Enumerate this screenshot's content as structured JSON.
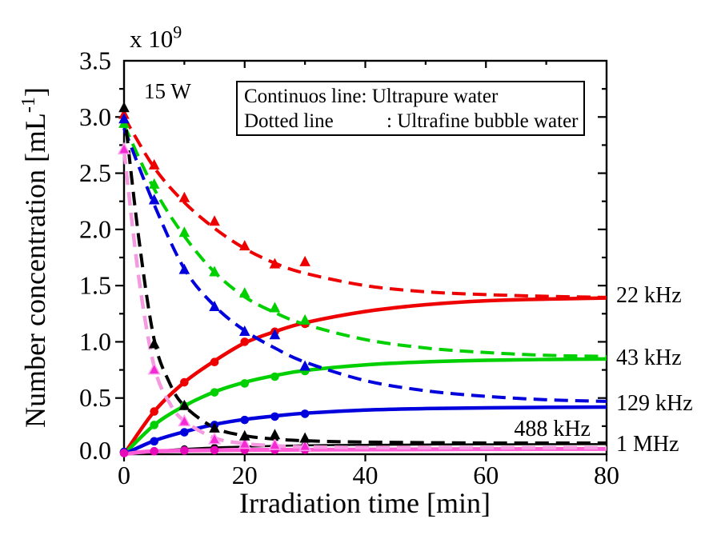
{
  "figure": {
    "power_label": "15 W",
    "legend": {
      "rows": [
        {
          "name": "Continuos line",
          "rest": ": Ultrapure water"
        },
        {
          "name": "Dotted line",
          "rest": ": Ultrafine bubble water"
        }
      ]
    }
  },
  "chart_data": {
    "type": "line",
    "title": "",
    "xlabel": "Irradiation time [min]",
    "ylabel": {
      "pre": "Number concentration [mL",
      "sup": "-1",
      "post": "]"
    },
    "scale_label": {
      "prefix": "x 10",
      "exponent": "9"
    },
    "xlim": [
      0,
      80
    ],
    "ylim": [
      0,
      3.5
    ],
    "x_major_ticks": [
      0,
      20,
      40,
      60,
      80
    ],
    "x_minor_ticks": [
      10,
      30,
      50,
      70
    ],
    "y_major_step": 0.5,
    "y_minor_step": 0.25,
    "grid": false,
    "legend_position": "top-center",
    "annotations": [
      {
        "text": "22 kHz",
        "y": 1.4,
        "placement": "right"
      },
      {
        "text": "43 kHz",
        "y": 0.845,
        "placement": "right"
      },
      {
        "text": "129 kHz",
        "y": 0.44,
        "placement": "right"
      },
      {
        "text": "488 kHz",
        "y": 0.22,
        "t": 71,
        "placement": "inside"
      },
      {
        "text": "1 MHz",
        "y": 0.075,
        "placement": "right"
      }
    ],
    "series": [
      {
        "id": "22khz-ultrapure",
        "label": "22 kHz",
        "water": "Ultrapure water",
        "color": "#ee0000",
        "line": "solid",
        "width": 4.5,
        "marker": "circle",
        "curve": [
          [
            0,
            0
          ],
          [
            5,
            0.38
          ],
          [
            10,
            0.64
          ],
          [
            15,
            0.83
          ],
          [
            20,
            0.99
          ],
          [
            25,
            1.09
          ],
          [
            30,
            1.17
          ],
          [
            40,
            1.27
          ],
          [
            50,
            1.33
          ],
          [
            60,
            1.365
          ],
          [
            70,
            1.38
          ],
          [
            80,
            1.39
          ]
        ],
        "markers": [
          [
            0,
            0.02
          ],
          [
            5,
            0.38
          ],
          [
            10,
            0.64
          ],
          [
            15,
            0.82
          ],
          [
            20,
            1.0
          ],
          [
            25,
            1.09
          ],
          [
            30,
            1.16
          ]
        ]
      },
      {
        "id": "43khz-ultrapure",
        "label": "43 kHz",
        "water": "Ultrapure water",
        "color": "#00d000",
        "line": "solid",
        "width": 4.5,
        "marker": "circle",
        "curve": [
          [
            0,
            0
          ],
          [
            5,
            0.26
          ],
          [
            10,
            0.43
          ],
          [
            15,
            0.555
          ],
          [
            20,
            0.64
          ],
          [
            25,
            0.7
          ],
          [
            30,
            0.745
          ],
          [
            40,
            0.795
          ],
          [
            50,
            0.822
          ],
          [
            60,
            0.836
          ],
          [
            70,
            0.843
          ],
          [
            80,
            0.847
          ]
        ],
        "markers": [
          [
            0,
            0.02
          ],
          [
            5,
            0.26
          ],
          [
            10,
            0.43
          ],
          [
            15,
            0.55
          ],
          [
            20,
            0.63
          ],
          [
            25,
            0.69
          ],
          [
            30,
            0.74
          ]
        ]
      },
      {
        "id": "129khz-ultrapure",
        "label": "129 kHz",
        "water": "Ultrapure water",
        "color": "#0000dd",
        "line": "solid",
        "width": 4.5,
        "marker": "circle",
        "curve": [
          [
            0,
            0
          ],
          [
            5,
            0.12
          ],
          [
            10,
            0.2
          ],
          [
            15,
            0.265
          ],
          [
            20,
            0.31
          ],
          [
            25,
            0.34
          ],
          [
            30,
            0.365
          ],
          [
            40,
            0.393
          ],
          [
            50,
            0.406
          ],
          [
            60,
            0.413
          ],
          [
            70,
            0.417
          ],
          [
            80,
            0.42
          ]
        ],
        "markers": [
          [
            0,
            0.02
          ],
          [
            5,
            0.115
          ],
          [
            10,
            0.195
          ],
          [
            15,
            0.26
          ],
          [
            20,
            0.305
          ],
          [
            25,
            0.335
          ],
          [
            30,
            0.36
          ]
        ]
      },
      {
        "id": "488khz-ultrapure",
        "label": "488 kHz",
        "water": "Ultrapure water",
        "color": "#000000",
        "line": "solid",
        "width": 2.5,
        "marker": "circle",
        "marker_size": 4.6,
        "curve": [
          [
            0,
            0
          ],
          [
            5,
            0.028
          ],
          [
            10,
            0.047
          ],
          [
            15,
            0.06
          ],
          [
            20,
            0.068
          ],
          [
            30,
            0.079
          ],
          [
            40,
            0.084
          ],
          [
            60,
            0.088
          ],
          [
            80,
            0.09
          ]
        ],
        "markers": [
          [
            0,
            0.015
          ],
          [
            5,
            0.028
          ],
          [
            10,
            0.047
          ],
          [
            15,
            0.06
          ],
          [
            20,
            0.068
          ],
          [
            25,
            0.074
          ],
          [
            30,
            0.079
          ]
        ]
      },
      {
        "id": "1mhz-ultrapure",
        "label": "1 MHz",
        "water": "Ultrapure water",
        "color": "#ff5cd6",
        "marker_color": "#e709b9",
        "line": "solid",
        "width": 5,
        "marker": "circle",
        "curve": [
          [
            0,
            0
          ],
          [
            2.5,
            0.018
          ],
          [
            5,
            0.027
          ],
          [
            10,
            0.033
          ],
          [
            15,
            0.036
          ],
          [
            20,
            0.038
          ],
          [
            30,
            0.04
          ],
          [
            40,
            0.042
          ],
          [
            60,
            0.045
          ],
          [
            80,
            0.047
          ]
        ],
        "markers": [
          [
            0,
            0.01
          ],
          [
            5,
            0.027
          ],
          [
            10,
            0.033
          ],
          [
            15,
            0.036
          ],
          [
            20,
            0.038
          ],
          [
            25,
            0.039
          ],
          [
            30,
            0.04
          ]
        ]
      },
      {
        "id": "22khz-ultrafine",
        "label": "22 kHz",
        "water": "Ultrafine bubble water",
        "color": "#ee0000",
        "line": "dashed",
        "width": 4,
        "marker": "triangle",
        "curve": [
          [
            0,
            3.0
          ],
          [
            5,
            2.55
          ],
          [
            10,
            2.24
          ],
          [
            15,
            2.01
          ],
          [
            20,
            1.83
          ],
          [
            25,
            1.7
          ],
          [
            30,
            1.61
          ],
          [
            40,
            1.5
          ],
          [
            50,
            1.445
          ],
          [
            60,
            1.42
          ],
          [
            70,
            1.405
          ],
          [
            80,
            1.395
          ]
        ],
        "markers": [
          [
            0,
            3.02
          ],
          [
            5,
            2.57
          ],
          [
            10,
            2.28
          ],
          [
            15,
            2.07
          ],
          [
            20,
            1.85
          ],
          [
            25,
            1.69
          ],
          [
            30,
            1.71
          ]
        ]
      },
      {
        "id": "43khz-ultrafine",
        "label": "43 kHz",
        "water": "Ultrafine bubble water",
        "color": "#00d000",
        "line": "dashed",
        "width": 4,
        "marker": "triangle",
        "curve": [
          [
            0,
            2.93
          ],
          [
            5,
            2.36
          ],
          [
            10,
            1.94
          ],
          [
            15,
            1.62
          ],
          [
            20,
            1.4
          ],
          [
            25,
            1.26
          ],
          [
            30,
            1.155
          ],
          [
            40,
            1.02
          ],
          [
            50,
            0.945
          ],
          [
            60,
            0.905
          ],
          [
            70,
            0.88
          ],
          [
            80,
            0.87
          ]
        ],
        "markers": [
          [
            0,
            2.94
          ],
          [
            5,
            2.4
          ],
          [
            10,
            1.97
          ],
          [
            15,
            1.62
          ],
          [
            20,
            1.43
          ],
          [
            25,
            1.3
          ],
          [
            30,
            1.19
          ]
        ]
      },
      {
        "id": "129khz-ultrafine",
        "label": "129 kHz",
        "water": "Ultrafine bubble water",
        "color": "#0000dd",
        "line": "dashed",
        "width": 4,
        "marker": "triangle",
        "curve": [
          [
            0,
            2.9
          ],
          [
            5,
            2.22
          ],
          [
            10,
            1.65
          ],
          [
            15,
            1.32
          ],
          [
            20,
            1.1
          ],
          [
            25,
            0.945
          ],
          [
            30,
            0.82
          ],
          [
            40,
            0.655
          ],
          [
            50,
            0.565
          ],
          [
            60,
            0.515
          ],
          [
            70,
            0.485
          ],
          [
            80,
            0.47
          ]
        ],
        "markers": [
          [
            0,
            2.98
          ],
          [
            5,
            2.26
          ],
          [
            10,
            1.64
          ],
          [
            15,
            1.31
          ],
          [
            20,
            1.09
          ],
          [
            25,
            1.06
          ],
          [
            30,
            0.78
          ]
        ]
      },
      {
        "id": "1mhz-ultrafine",
        "label": "1 MHz",
        "water": "Ultrafine bubble water",
        "color": "#f59ae0",
        "marker_color": "#f32ad4",
        "marker_stroke": "#ff9ff0",
        "line": "dashed",
        "width": 4.5,
        "marker": "triangle",
        "curve": [
          [
            0,
            2.7
          ],
          [
            2.5,
            1.55
          ],
          [
            5,
            0.78
          ],
          [
            7.5,
            0.46
          ],
          [
            10,
            0.295
          ],
          [
            15,
            0.145
          ],
          [
            20,
            0.095
          ],
          [
            25,
            0.075
          ],
          [
            30,
            0.065
          ],
          [
            40,
            0.06
          ],
          [
            60,
            0.058
          ],
          [
            80,
            0.058
          ]
        ],
        "markers": [
          [
            0,
            2.71
          ],
          [
            5,
            0.75
          ],
          [
            10,
            0.29
          ],
          [
            15,
            0.13
          ],
          [
            20,
            0.09
          ],
          [
            25,
            0.08
          ],
          [
            30,
            0.07
          ]
        ]
      },
      {
        "id": "488khz-ultrafine",
        "label": "488 kHz",
        "water": "Ultrafine bubble water",
        "color": "#000000",
        "line": "dashed",
        "width": 4,
        "marker": "triangle",
        "curve": [
          [
            0,
            3.07
          ],
          [
            2.5,
            1.9
          ],
          [
            5,
            1.02
          ],
          [
            7.5,
            0.64
          ],
          [
            10,
            0.43
          ],
          [
            15,
            0.235
          ],
          [
            20,
            0.165
          ],
          [
            25,
            0.135
          ],
          [
            30,
            0.12
          ],
          [
            40,
            0.108
          ],
          [
            60,
            0.1
          ],
          [
            80,
            0.1
          ]
        ],
        "markers": [
          [
            0,
            3.08
          ],
          [
            5,
            0.98
          ],
          [
            10,
            0.43
          ],
          [
            15,
            0.23
          ],
          [
            20,
            0.16
          ],
          [
            25,
            0.17
          ],
          [
            30,
            0.14
          ]
        ]
      }
    ]
  }
}
